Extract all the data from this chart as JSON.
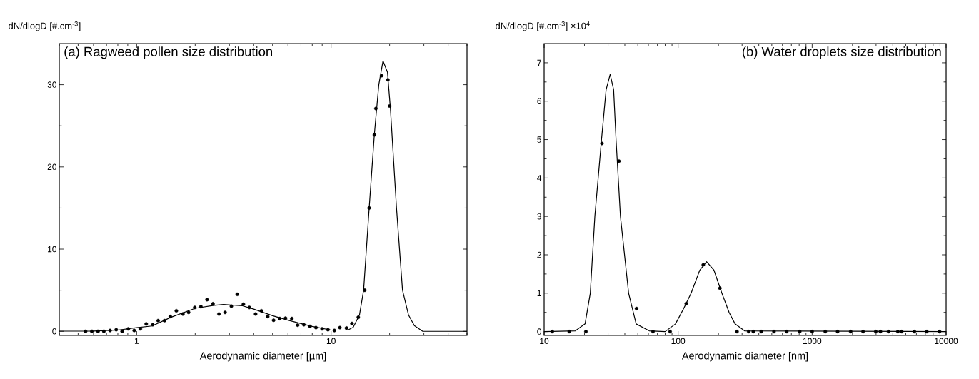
{
  "chart_data": [
    {
      "type": "scatter",
      "title": "(a) Ragweed pollen size distribution",
      "xlabel": "Aerodynamic diameter [µm]",
      "ylabel": "dN/dlogD [#.cm$^{-3}$]",
      "log": "x",
      "xlim": [
        0.4,
        50
      ],
      "ylim": [
        -0.5,
        35
      ],
      "xticks": [
        1,
        10
      ],
      "yticks": [
        0,
        10,
        20,
        30
      ],
      "series": [
        {
          "type": "scatter",
          "marker": "circle",
          "color": "#000000",
          "x": [
            0.546,
            0.588,
            0.633,
            0.678,
            0.73,
            0.785,
            0.842,
            0.906,
            0.971,
            1.045,
            1.12,
            1.21,
            1.29,
            1.39,
            1.49,
            1.6,
            1.73,
            1.85,
            1.99,
            2.14,
            2.3,
            2.47,
            2.65,
            2.85,
            3.07,
            3.29,
            3.54,
            3.8,
            4.09,
            4.38,
            4.72,
            5.06,
            5.44,
            5.83,
            6.28,
            6.73,
            7.24,
            7.79,
            8.36,
            8.99,
            9.64,
            10.4,
            11.1,
            12.0,
            12.8,
            13.8,
            14.9,
            15.7,
            16.7,
            17.0,
            18.2,
            19.6,
            20.0
          ],
          "values": [
            0,
            0,
            0,
            0,
            0.1,
            0.2,
            0,
            0.3,
            0.1,
            0.3,
            0.9,
            0.8,
            1.3,
            1.3,
            1.8,
            2.5,
            2.1,
            2.3,
            2.9,
            3.0,
            3.85,
            3.35,
            2.1,
            2.3,
            3.05,
            4.5,
            3.3,
            2.9,
            2.1,
            2.5,
            1.8,
            1.35,
            1.55,
            1.6,
            1.55,
            0.75,
            0.8,
            0.6,
            0.45,
            0.3,
            0.2,
            0.1,
            0.45,
            0.4,
            0.95,
            1.7,
            5.0,
            15.0,
            23.9,
            27.1,
            31.1,
            30.6,
            27.4
          ]
        },
        {
          "type": "line",
          "marker": "none",
          "color": "#000000",
          "x": [
            0.4,
            0.6,
            0.8,
            1.0,
            1.2,
            1.5,
            2.0,
            2.5,
            2.8,
            3.5,
            4.0,
            5.0,
            6.0,
            7.0,
            8.0,
            10,
            12.2,
            13,
            14,
            14.7,
            15.7,
            16.7,
            17.6,
            18.5,
            19.5,
            20.2,
            21.7,
            23.3,
            25,
            26.8,
            29.6,
            50
          ],
          "values": [
            0.02,
            0.03,
            0.15,
            0.45,
            0.65,
            1.7,
            2.8,
            3.15,
            3.27,
            3.1,
            2.7,
            1.9,
            1.35,
            0.95,
            0.6,
            0.15,
            0.15,
            0.5,
            2.0,
            5,
            15,
            24,
            30,
            32.9,
            31.5,
            27,
            15,
            5,
            2,
            0.7,
            0,
            0
          ]
        }
      ]
    },
    {
      "type": "scatter",
      "title": "(b) Water droplets size distribution",
      "xlabel": "Aerodynamic diameter [nm]",
      "ylabel": "dN/dlogD [#.cm$^{-3}$] ×10$^{4}$",
      "log": "x",
      "xlim": [
        10,
        10000
      ],
      "ylim": [
        -0.1,
        7.5
      ],
      "xticks": [
        10,
        100,
        1000,
        10000
      ],
      "yticks": [
        0,
        1,
        2,
        3,
        4,
        5,
        6,
        7
      ],
      "series": [
        {
          "type": "scatter",
          "marker": "circle",
          "color": "#000000",
          "x": [
            11.5,
            15.4,
            20.5,
            27.0,
            36.2,
            48.9,
            64.9,
            87.1,
            115,
            154,
            205,
            275,
            336,
            364,
            417,
            519,
            646,
            808,
            1000,
            1253,
            1549,
            1940,
            2400,
            2985,
            3234,
            3717,
            4365,
            4656,
            5796,
            7174,
            8932
          ],
          "values": [
            0,
            0,
            0,
            4.9,
            4.44,
            0.6,
            0,
            0,
            0.73,
            1.74,
            1.13,
            0,
            0,
            0,
            0,
            0,
            0,
            0,
            0,
            0,
            0,
            0,
            0,
            0,
            0,
            0,
            0,
            0,
            0,
            0,
            0
          ]
        },
        {
          "type": "line",
          "marker": "none",
          "color": "#000000",
          "x": [
            10,
            17.1,
            20.2,
            22.1,
            23.9,
            26.8,
            29,
            31.1,
            33,
            34.4,
            37.1,
            42.7,
            48.6,
            60.8,
            80,
            95.5,
            110,
            125,
            145,
            163,
            185,
            212,
            240,
            266,
            313,
            10000
          ],
          "values": [
            0,
            0.02,
            0.2,
            1,
            3,
            5,
            6.3,
            6.7,
            6.3,
            5,
            3,
            1,
            0.2,
            0.02,
            0,
            0.2,
            0.6,
            1.0,
            1.6,
            1.82,
            1.6,
            1.0,
            0.5,
            0.2,
            0.02,
            0
          ]
        }
      ]
    }
  ]
}
